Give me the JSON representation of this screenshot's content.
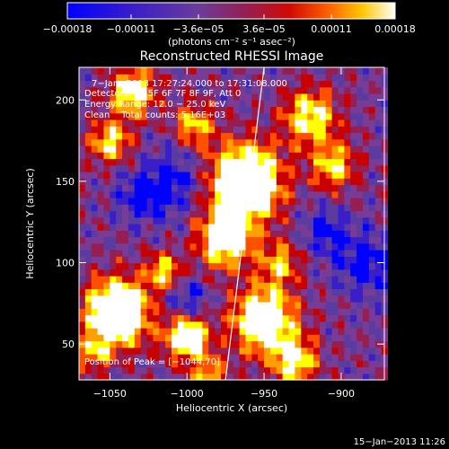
{
  "chart_data": {
    "type": "heatmap",
    "title": "Reconstructed RHESSI Image",
    "xlabel": "Heliocentric X (arcsec)",
    "ylabel": "Heliocentric Y (arcsec)",
    "xlim": [
      -1070,
      -872
    ],
    "ylim": [
      28,
      220
    ],
    "xticks": [
      -1050,
      -1000,
      -950,
      -900
    ],
    "xtick_labels": [
      "−1050",
      "−1000",
      "−950",
      "−900"
    ],
    "yticks": [
      50,
      100,
      150,
      200
    ],
    "ytick_labels": [
      "50",
      "100",
      "150",
      "200"
    ],
    "colorbar": {
      "min": -0.00018,
      "max": 0.00018,
      "ticks": [
        -0.00018,
        -0.00011,
        -3.6e-05,
        3.6e-05,
        0.00011,
        0.00018
      ],
      "tick_labels": [
        "−0.00018",
        "−0.00011",
        "−3.6e−05",
        "3.6e−05",
        "0.00011",
        "0.00018"
      ],
      "unit_label": "(photons cm⁻² s⁻¹ asec⁻²)"
    },
    "annotations": [
      "7−Jan−2013 17:27:24.000 to 17:31:08.000",
      "Detectors: 3F 5F 6F 7F 8F 9F, Att 0",
      "Energy Range: 12.0 − 25.0 keV",
      "Clean    Total counts: 5.16E+03"
    ],
    "peak_label": "Position of Peak = [−1044,70]",
    "limb_line": {
      "x": [
        -975,
        -950
      ],
      "y": [
        28,
        220
      ]
    },
    "grid": false
  },
  "footer": {
    "timestamp": "15−Jan−2013 11:26"
  },
  "colors": {
    "background": "#000000",
    "colormap": [
      "#0000ff",
      "#3a1ec8",
      "#5a3ca0",
      "#783c96",
      "#961e50",
      "#c80000",
      "#ff5000",
      "#ffa000",
      "#ffff00",
      "#ffffff"
    ]
  }
}
